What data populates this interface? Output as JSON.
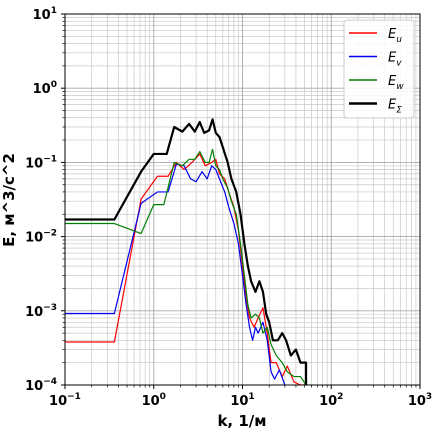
{
  "chart_data": {
    "type": "line",
    "xscale": "log",
    "yscale": "log",
    "xlim": [
      0.1,
      1000
    ],
    "ylim": [
      0.0001,
      10
    ],
    "grid": true,
    "legend_position": "top-right",
    "xlabel": "k, 1/м",
    "ylabel": "E, м^3/с^2",
    "x_ticks": [
      {
        "value": 0.1,
        "base": "10",
        "exp": "−1"
      },
      {
        "value": 1,
        "base": "10",
        "exp": "0"
      },
      {
        "value": 10,
        "base": "10",
        "exp": "1"
      },
      {
        "value": 100,
        "base": "10",
        "exp": "2"
      },
      {
        "value": 1000,
        "base": "10",
        "exp": "3"
      }
    ],
    "y_ticks": [
      {
        "value": 0.0001,
        "base": "10",
        "exp": "−4"
      },
      {
        "value": 0.001,
        "base": "10",
        "exp": "−3"
      },
      {
        "value": 0.01,
        "base": "10",
        "exp": "−2"
      },
      {
        "value": 0.1,
        "base": "10",
        "exp": "−1"
      },
      {
        "value": 1,
        "base": "10",
        "exp": "0"
      },
      {
        "value": 10,
        "base": "10",
        "exp": "1"
      }
    ],
    "series": [
      {
        "name": "Eu",
        "label_main": "E",
        "label_sub": "u",
        "color": "#ff0000",
        "width": 1.2,
        "points": [
          [
            0.1,
            0.00038
          ],
          [
            0.36,
            0.00038
          ],
          [
            0.72,
            0.032
          ],
          [
            1.1,
            0.065
          ],
          [
            1.45,
            0.065
          ],
          [
            1.8,
            0.1
          ],
          [
            2.2,
            0.08
          ],
          [
            2.7,
            0.1
          ],
          [
            3.3,
            0.13
          ],
          [
            3.8,
            0.09
          ],
          [
            4.5,
            0.1
          ],
          [
            5.0,
            0.11
          ],
          [
            5.5,
            0.07
          ],
          [
            6.3,
            0.06
          ],
          [
            7.0,
            0.04
          ],
          [
            8.0,
            0.025
          ],
          [
            9.0,
            0.012
          ],
          [
            10.0,
            0.004
          ],
          [
            11.0,
            0.0015
          ],
          [
            12.0,
            0.0008
          ],
          [
            13.5,
            0.0006
          ],
          [
            15.0,
            0.0008
          ],
          [
            17.0,
            0.0011
          ],
          [
            19.0,
            0.0005
          ],
          [
            21.0,
            0.0002
          ],
          [
            24.0,
            0.0002
          ],
          [
            28.0,
            0.00013
          ],
          [
            32.0,
            0.00018
          ],
          [
            38.0,
            0.00011
          ],
          [
            45.0,
            0.0001
          ],
          [
            52.0,
            0.0001
          ]
        ]
      },
      {
        "name": "Ev",
        "label_main": "E",
        "label_sub": "v",
        "color": "#0000ee",
        "width": 1.2,
        "points": [
          [
            0.1,
            0.00092
          ],
          [
            0.36,
            0.00092
          ],
          [
            0.72,
            0.028
          ],
          [
            1.1,
            0.04
          ],
          [
            1.45,
            0.04
          ],
          [
            1.8,
            0.095
          ],
          [
            2.2,
            0.09
          ],
          [
            2.6,
            0.06
          ],
          [
            3.0,
            0.055
          ],
          [
            3.5,
            0.075
          ],
          [
            4.0,
            0.06
          ],
          [
            4.5,
            0.09
          ],
          [
            5.0,
            0.08
          ],
          [
            5.5,
            0.06
          ],
          [
            6.3,
            0.04
          ],
          [
            7.0,
            0.025
          ],
          [
            8.0,
            0.015
          ],
          [
            9.0,
            0.008
          ],
          [
            10.0,
            0.003
          ],
          [
            11.0,
            0.0012
          ],
          [
            12.0,
            0.0006
          ],
          [
            13.0,
            0.0004
          ],
          [
            14.0,
            0.0006
          ],
          [
            15.0,
            0.0005
          ],
          [
            17.0,
            0.0007
          ],
          [
            19.0,
            0.0004
          ],
          [
            21.0,
            0.00015
          ],
          [
            23.0,
            0.00012
          ],
          [
            26.0,
            0.00016
          ],
          [
            30.0,
            0.0001
          ]
        ]
      },
      {
        "name": "Ew",
        "label_main": "E",
        "label_sub": "w",
        "color": "#008000",
        "width": 1.2,
        "points": [
          [
            0.1,
            0.015
          ],
          [
            0.36,
            0.015
          ],
          [
            0.72,
            0.011
          ],
          [
            1.0,
            0.027
          ],
          [
            1.3,
            0.027
          ],
          [
            1.7,
            0.1
          ],
          [
            2.1,
            0.09
          ],
          [
            2.5,
            0.11
          ],
          [
            2.9,
            0.11
          ],
          [
            3.3,
            0.14
          ],
          [
            3.8,
            0.1
          ],
          [
            4.2,
            0.1
          ],
          [
            4.6,
            0.15
          ],
          [
            5.0,
            0.09
          ],
          [
            5.5,
            0.08
          ],
          [
            6.0,
            0.06
          ],
          [
            6.8,
            0.045
          ],
          [
            7.5,
            0.03
          ],
          [
            8.5,
            0.02
          ],
          [
            9.5,
            0.008
          ],
          [
            10.5,
            0.003
          ],
          [
            11.5,
            0.0012
          ],
          [
            12.5,
            0.0008
          ],
          [
            14.0,
            0.0009
          ],
          [
            15.5,
            0.0008
          ],
          [
            17.0,
            0.0005
          ],
          [
            19.0,
            0.0006
          ],
          [
            21.0,
            0.00035
          ],
          [
            24.0,
            0.00025
          ],
          [
            28.0,
            0.0002
          ],
          [
            32.0,
            0.00015
          ],
          [
            38.0,
            0.00013
          ],
          [
            45.0,
            0.00013
          ],
          [
            52.0,
            0.0001
          ]
        ]
      },
      {
        "name": "EΣ",
        "label_main": "E",
        "label_sub": "Σ",
        "color": "#000000",
        "width": 2.2,
        "points": [
          [
            0.1,
            0.017
          ],
          [
            0.36,
            0.017
          ],
          [
            0.72,
            0.075
          ],
          [
            1.0,
            0.13
          ],
          [
            1.4,
            0.13
          ],
          [
            1.7,
            0.3
          ],
          [
            2.1,
            0.26
          ],
          [
            2.5,
            0.33
          ],
          [
            2.9,
            0.26
          ],
          [
            3.3,
            0.35
          ],
          [
            3.7,
            0.25
          ],
          [
            4.2,
            0.27
          ],
          [
            4.6,
            0.38
          ],
          [
            5.0,
            0.25
          ],
          [
            5.5,
            0.22
          ],
          [
            6.0,
            0.16
          ],
          [
            6.8,
            0.1
          ],
          [
            7.5,
            0.06
          ],
          [
            8.5,
            0.04
          ],
          [
            9.5,
            0.02
          ],
          [
            10.5,
            0.008
          ],
          [
            11.5,
            0.004
          ],
          [
            12.5,
            0.0025
          ],
          [
            14.0,
            0.0018
          ],
          [
            15.5,
            0.0025
          ],
          [
            17.0,
            0.0018
          ],
          [
            18.5,
            0.0009
          ],
          [
            20.0,
            0.0007
          ],
          [
            22.0,
            0.0004
          ],
          [
            25.0,
            0.0004
          ],
          [
            28.0,
            0.0005
          ],
          [
            31.0,
            0.0004
          ],
          [
            35.0,
            0.00025
          ],
          [
            40.0,
            0.0003
          ],
          [
            45.0,
            0.0002
          ],
          [
            52.0,
            0.0002
          ],
          [
            52.0,
            0.0001
          ]
        ]
      }
    ]
  }
}
